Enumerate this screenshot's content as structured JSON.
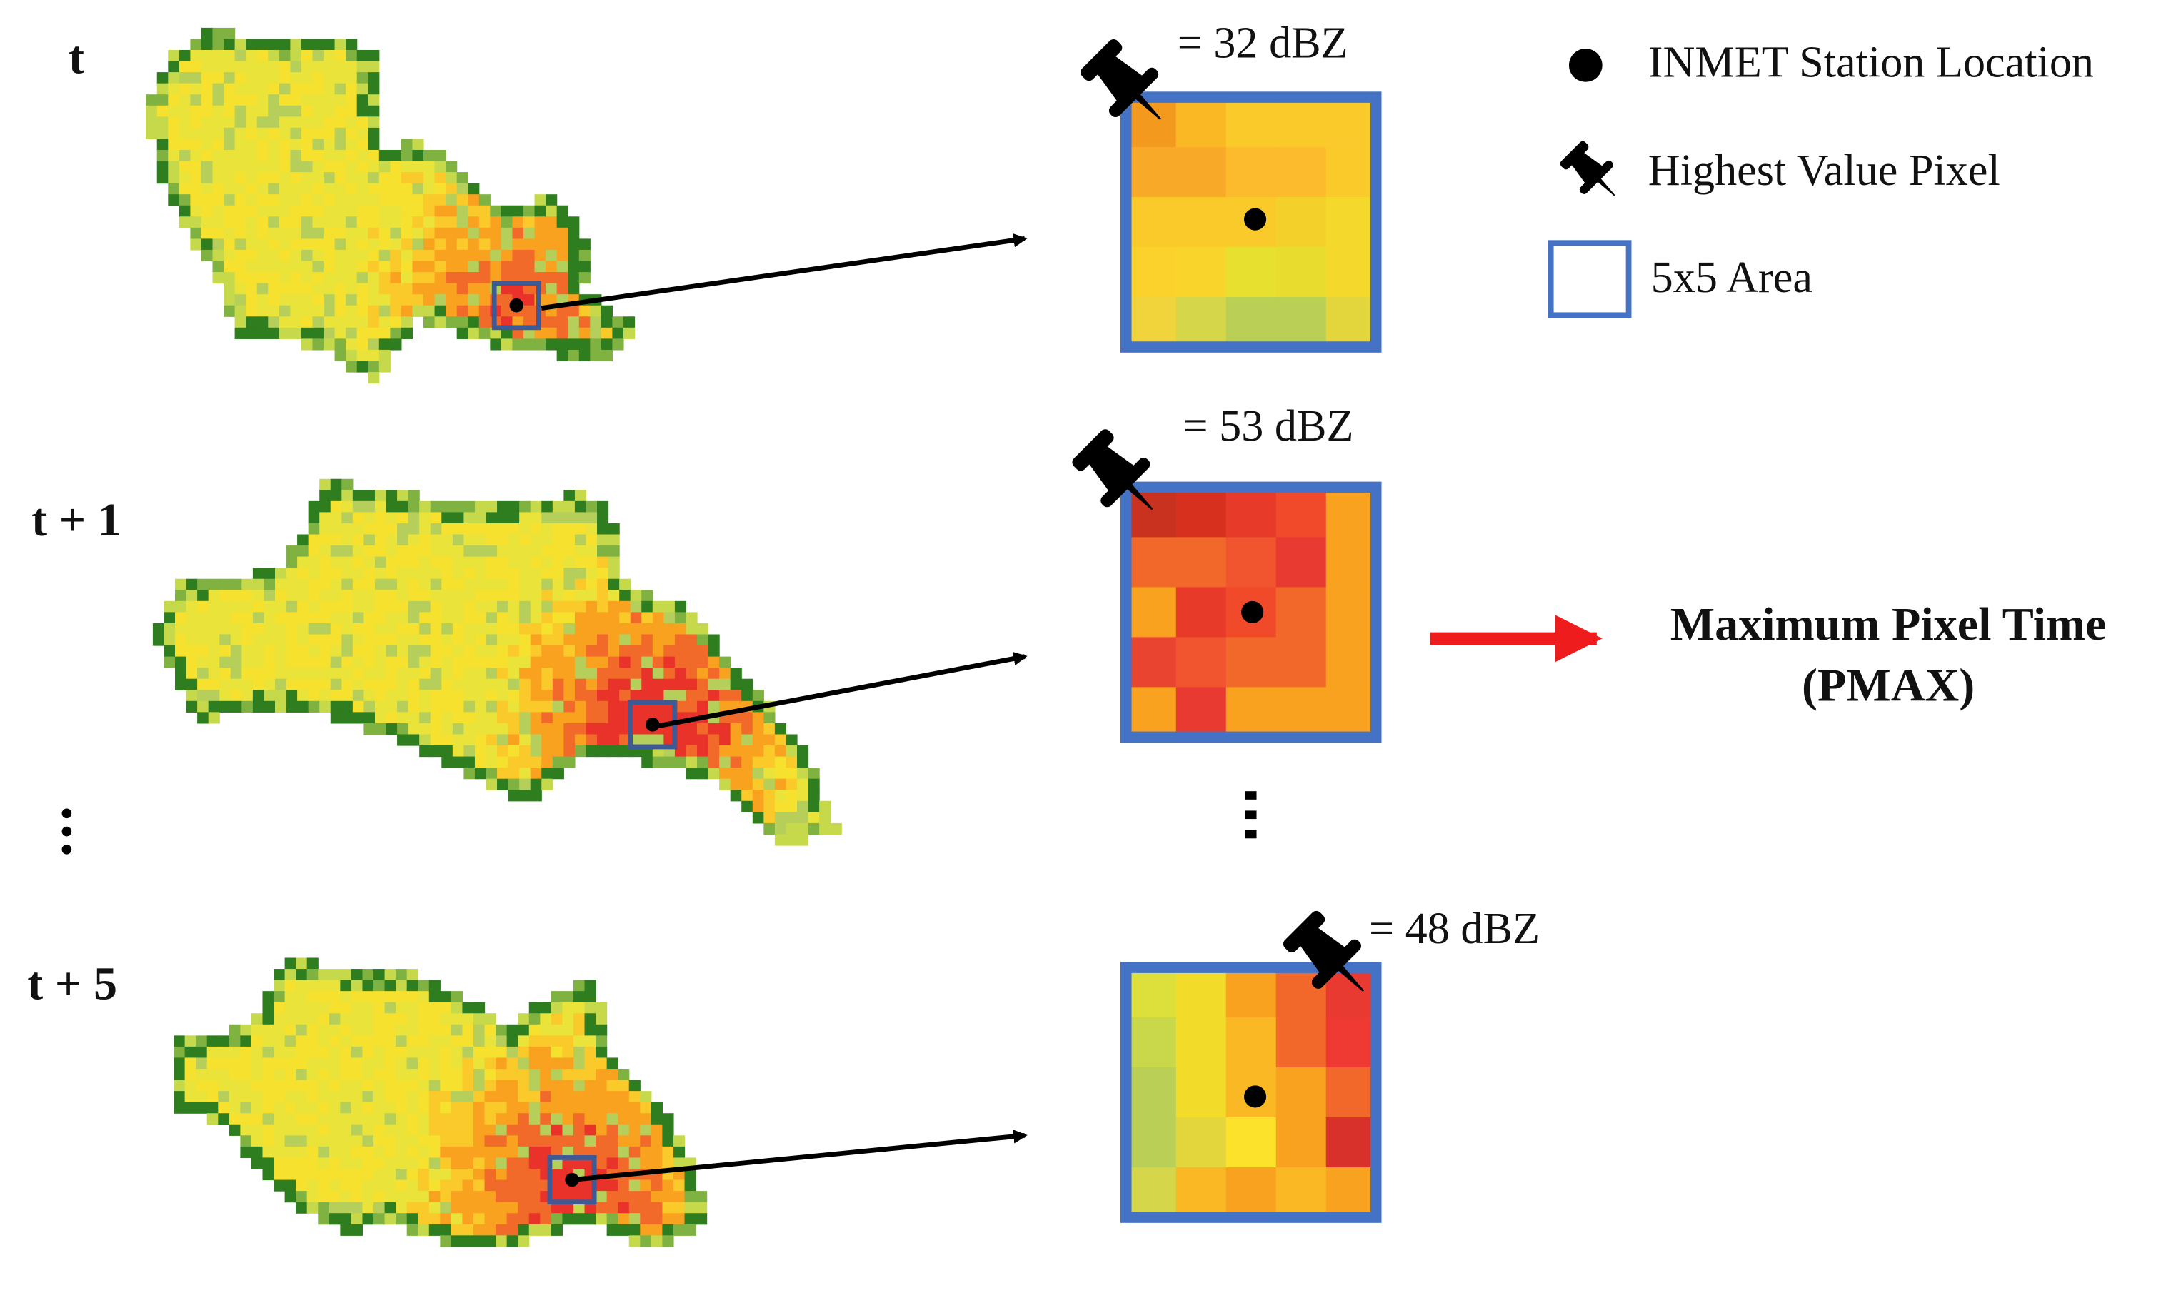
{
  "time_labels": [
    "t",
    "t + 1",
    "t + 5"
  ],
  "readings": [
    "= 32 dBZ",
    "= 53 dBZ",
    "= 48 dBZ"
  ],
  "legend": {
    "station": "INMET Station Location",
    "pin": "Highest Value Pixel",
    "area": "5x5 Area"
  },
  "result": {
    "title": "Maximum Pixel Time",
    "abbr": "(PMAX)"
  }
}
